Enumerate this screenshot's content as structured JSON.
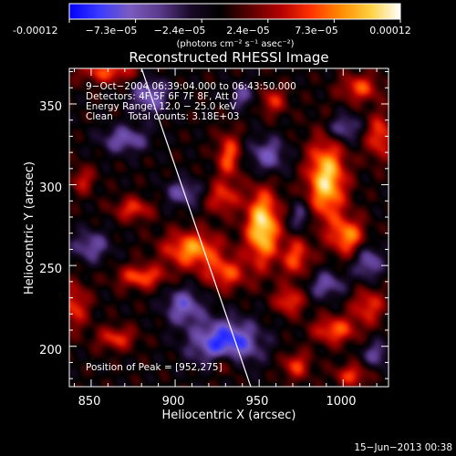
{
  "colorbar": {
    "tick_labels": [
      "-0.00012",
      "−7.3e−05",
      "−2.4e−05",
      "2.4e−05",
      "7.3e−05",
      "0.00012"
    ],
    "unit_label": "(photons cm⁻² s⁻¹ asec⁻²)",
    "range": [
      -0.00012,
      0.00012
    ],
    "colormap": [
      "#0000ff",
      "#3a3aff",
      "#7a5cc0",
      "#5a3a8c",
      "#1a0a2a",
      "#000000",
      "#5a0000",
      "#b00000",
      "#ff3000",
      "#ff8a00",
      "#ffd040",
      "#ffffff"
    ]
  },
  "chart_data": {
    "type": "heatmap",
    "title": "Reconstructed RHESSI Image",
    "xlabel": "Heliocentric X (arcsec)",
    "ylabel": "Heliocentric Y (arcsec)",
    "xlim": [
      837,
      1027
    ],
    "ylim": [
      175,
      372
    ],
    "x_ticks": [
      850,
      900,
      950,
      1000
    ],
    "y_ticks": [
      200,
      250,
      300,
      350
    ],
    "x_tick_labels": [
      "850",
      "900",
      "950",
      "1000"
    ],
    "y_tick_labels": [
      "200",
      "250",
      "300",
      "350"
    ],
    "limb_line": [
      [
        880,
        372
      ],
      [
        945,
        175
      ]
    ],
    "peak_position": [
      952,
      275
    ],
    "blobs": [
      {
        "x": 952,
        "y": 274,
        "sx": 7,
        "sy": 16,
        "a": 1.0
      },
      {
        "x": 990,
        "y": 303,
        "sx": 8,
        "sy": 18,
        "a": 0.95
      },
      {
        "x": 1003,
        "y": 268,
        "sx": 7,
        "sy": 8,
        "a": 0.7
      },
      {
        "x": 932,
        "y": 318,
        "sx": 5,
        "sy": 10,
        "a": 0.6
      },
      {
        "x": 910,
        "y": 260,
        "sx": 12,
        "sy": 8,
        "a": 0.75
      },
      {
        "x": 928,
        "y": 292,
        "sx": 7,
        "sy": 7,
        "a": 0.5
      },
      {
        "x": 972,
        "y": 255,
        "sx": 6,
        "sy": 9,
        "a": 0.55
      },
      {
        "x": 880,
        "y": 243,
        "sx": 10,
        "sy": 5,
        "a": 0.6
      },
      {
        "x": 875,
        "y": 285,
        "sx": 8,
        "sy": 5,
        "a": 0.5
      },
      {
        "x": 930,
        "y": 245,
        "sx": 9,
        "sy": 7,
        "a": 0.55
      },
      {
        "x": 860,
        "y": 370,
        "sx": 12,
        "sy": 5,
        "a": 0.55
      },
      {
        "x": 1010,
        "y": 360,
        "sx": 8,
        "sy": 6,
        "a": 0.55
      },
      {
        "x": 1022,
        "y": 330,
        "sx": 6,
        "sy": 10,
        "a": 0.55
      },
      {
        "x": 958,
        "y": 352,
        "sx": 6,
        "sy": 6,
        "a": 0.45
      },
      {
        "x": 1015,
        "y": 225,
        "sx": 7,
        "sy": 8,
        "a": 0.5
      },
      {
        "x": 995,
        "y": 210,
        "sx": 9,
        "sy": 6,
        "a": 0.6
      },
      {
        "x": 968,
        "y": 228,
        "sx": 6,
        "sy": 6,
        "a": 0.55
      },
      {
        "x": 972,
        "y": 188,
        "sx": 6,
        "sy": 6,
        "a": 0.5
      },
      {
        "x": 1005,
        "y": 182,
        "sx": 7,
        "sy": 5,
        "a": 0.5
      },
      {
        "x": 930,
        "y": 190,
        "sx": 6,
        "sy": 6,
        "a": 0.45
      },
      {
        "x": 865,
        "y": 205,
        "sx": 8,
        "sy": 5,
        "a": 0.5
      },
      {
        "x": 840,
        "y": 225,
        "sx": 6,
        "sy": 10,
        "a": 0.5
      },
      {
        "x": 845,
        "y": 303,
        "sx": 5,
        "sy": 6,
        "a": 0.4
      },
      {
        "x": 885,
        "y": 355,
        "sx": 8,
        "sy": 8,
        "a": -0.55
      },
      {
        "x": 930,
        "y": 202,
        "sx": 14,
        "sy": 10,
        "a": -0.85
      },
      {
        "x": 905,
        "y": 225,
        "sx": 8,
        "sy": 8,
        "a": -0.55
      },
      {
        "x": 870,
        "y": 328,
        "sx": 10,
        "sy": 6,
        "a": -0.5
      },
      {
        "x": 955,
        "y": 318,
        "sx": 8,
        "sy": 8,
        "a": -0.5
      },
      {
        "x": 1000,
        "y": 335,
        "sx": 7,
        "sy": 6,
        "a": -0.5
      },
      {
        "x": 1015,
        "y": 252,
        "sx": 6,
        "sy": 8,
        "a": -0.5
      },
      {
        "x": 850,
        "y": 262,
        "sx": 8,
        "sy": 7,
        "a": -0.45
      },
      {
        "x": 990,
        "y": 238,
        "sx": 8,
        "sy": 6,
        "a": -0.45
      },
      {
        "x": 905,
        "y": 295,
        "sx": 8,
        "sy": 6,
        "a": -0.45
      },
      {
        "x": 975,
        "y": 280,
        "sx": 5,
        "sy": 7,
        "a": -0.4
      },
      {
        "x": 1020,
        "y": 195,
        "sx": 6,
        "sy": 6,
        "a": -0.4
      },
      {
        "x": 940,
        "y": 355,
        "sx": 6,
        "sy": 6,
        "a": -0.4
      }
    ]
  },
  "annotations": [
    "9−Oct−2004 06:39:04.000 to 06:43:50.000",
    "Detectors: 4F 5F 6F 7F 8F, Att 0",
    "Energy Range: 12.0 − 25.0 keV",
    "Clean     Total counts: 3.18E+03"
  ],
  "peak_label": "Position of Peak = [952,275]",
  "footer_timestamp": "15−Jun−2013 00:38"
}
